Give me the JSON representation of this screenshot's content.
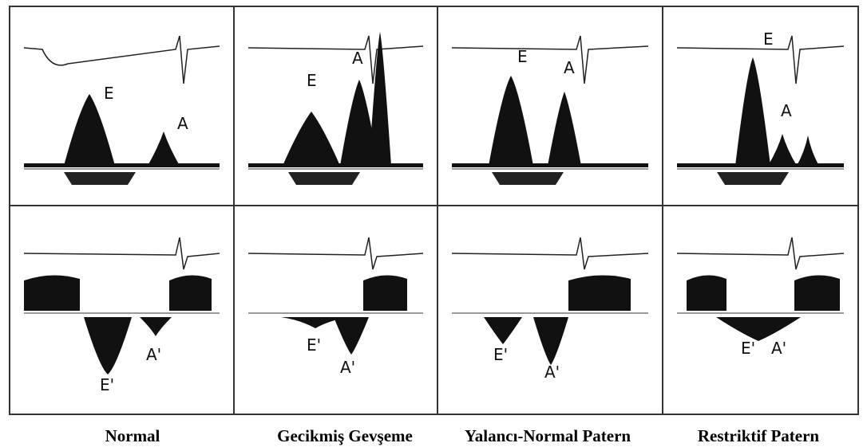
{
  "panels": [
    {
      "caption": "Normal",
      "top_labels": [
        "E",
        "A"
      ],
      "bottom_labels": [
        "E'",
        "A'"
      ]
    },
    {
      "caption": "Gecikmiş Gevşeme",
      "top_labels": [
        "E",
        "A"
      ],
      "bottom_labels": [
        "E'",
        "A'"
      ]
    },
    {
      "caption": "Yalancı-Normal Patern",
      "top_labels": [
        "E",
        "A"
      ],
      "bottom_labels": [
        "E'",
        "A'"
      ]
    },
    {
      "caption": "Restriktif Patern",
      "top_labels": [
        "E",
        "A"
      ],
      "bottom_labels": [
        "E'",
        "A'"
      ]
    }
  ]
}
